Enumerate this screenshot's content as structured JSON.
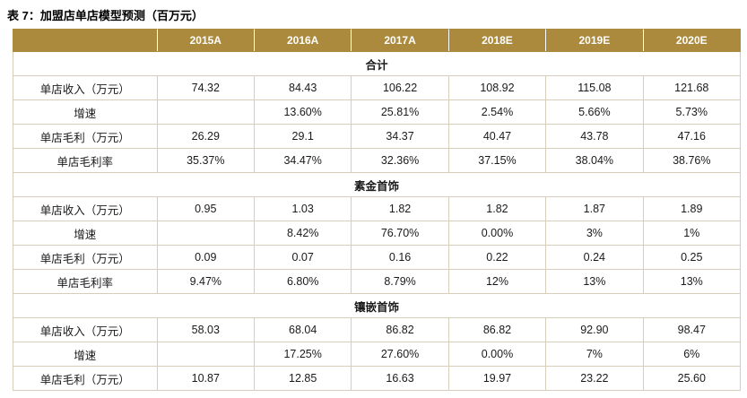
{
  "title": "表 7：加盟店单店模型预测（百万元）",
  "colors": {
    "header_bg": "#AB8A3D",
    "header_text": "#FFFFFF",
    "border": "#D6CEBB"
  },
  "table": {
    "columns": [
      "",
      "2015A",
      "2016A",
      "2017A",
      "2018E",
      "2019E",
      "2020E"
    ],
    "sections": [
      {
        "name": "合计",
        "rows": [
          {
            "label": "单店收入（万元）",
            "values": [
              "74.32",
              "84.43",
              "106.22",
              "108.92",
              "115.08",
              "121.68"
            ]
          },
          {
            "label": "增速",
            "values": [
              "",
              "13.60%",
              "25.81%",
              "2.54%",
              "5.66%",
              "5.73%"
            ]
          },
          {
            "label": "单店毛利（万元）",
            "values": [
              "26.29",
              "29.1",
              "34.37",
              "40.47",
              "43.78",
              "47.16"
            ]
          },
          {
            "label": "单店毛利率",
            "values": [
              "35.37%",
              "34.47%",
              "32.36%",
              "37.15%",
              "38.04%",
              "38.76%"
            ]
          }
        ]
      },
      {
        "name": "素金首饰",
        "rows": [
          {
            "label": "单店收入（万元）",
            "values": [
              "0.95",
              "1.03",
              "1.82",
              "1.82",
              "1.87",
              "1.89"
            ]
          },
          {
            "label": "增速",
            "values": [
              "",
              "8.42%",
              "76.70%",
              "0.00%",
              "3%",
              "1%"
            ]
          },
          {
            "label": "单店毛利（万元）",
            "values": [
              "0.09",
              "0.07",
              "0.16",
              "0.22",
              "0.24",
              "0.25"
            ]
          },
          {
            "label": "单店毛利率",
            "values": [
              "9.47%",
              "6.80%",
              "8.79%",
              "12%",
              "13%",
              "13%"
            ]
          }
        ]
      },
      {
        "name": "镶嵌首饰",
        "rows": [
          {
            "label": "单店收入（万元）",
            "values": [
              "58.03",
              "68.04",
              "86.82",
              "86.82",
              "92.90",
              "98.47"
            ]
          },
          {
            "label": "增速",
            "values": [
              "",
              "17.25%",
              "27.60%",
              "0.00%",
              "7%",
              "6%"
            ]
          },
          {
            "label": "单店毛利（万元）",
            "values": [
              "10.87",
              "12.85",
              "16.63",
              "19.97",
              "23.22",
              "25.60"
            ]
          }
        ]
      }
    ]
  }
}
